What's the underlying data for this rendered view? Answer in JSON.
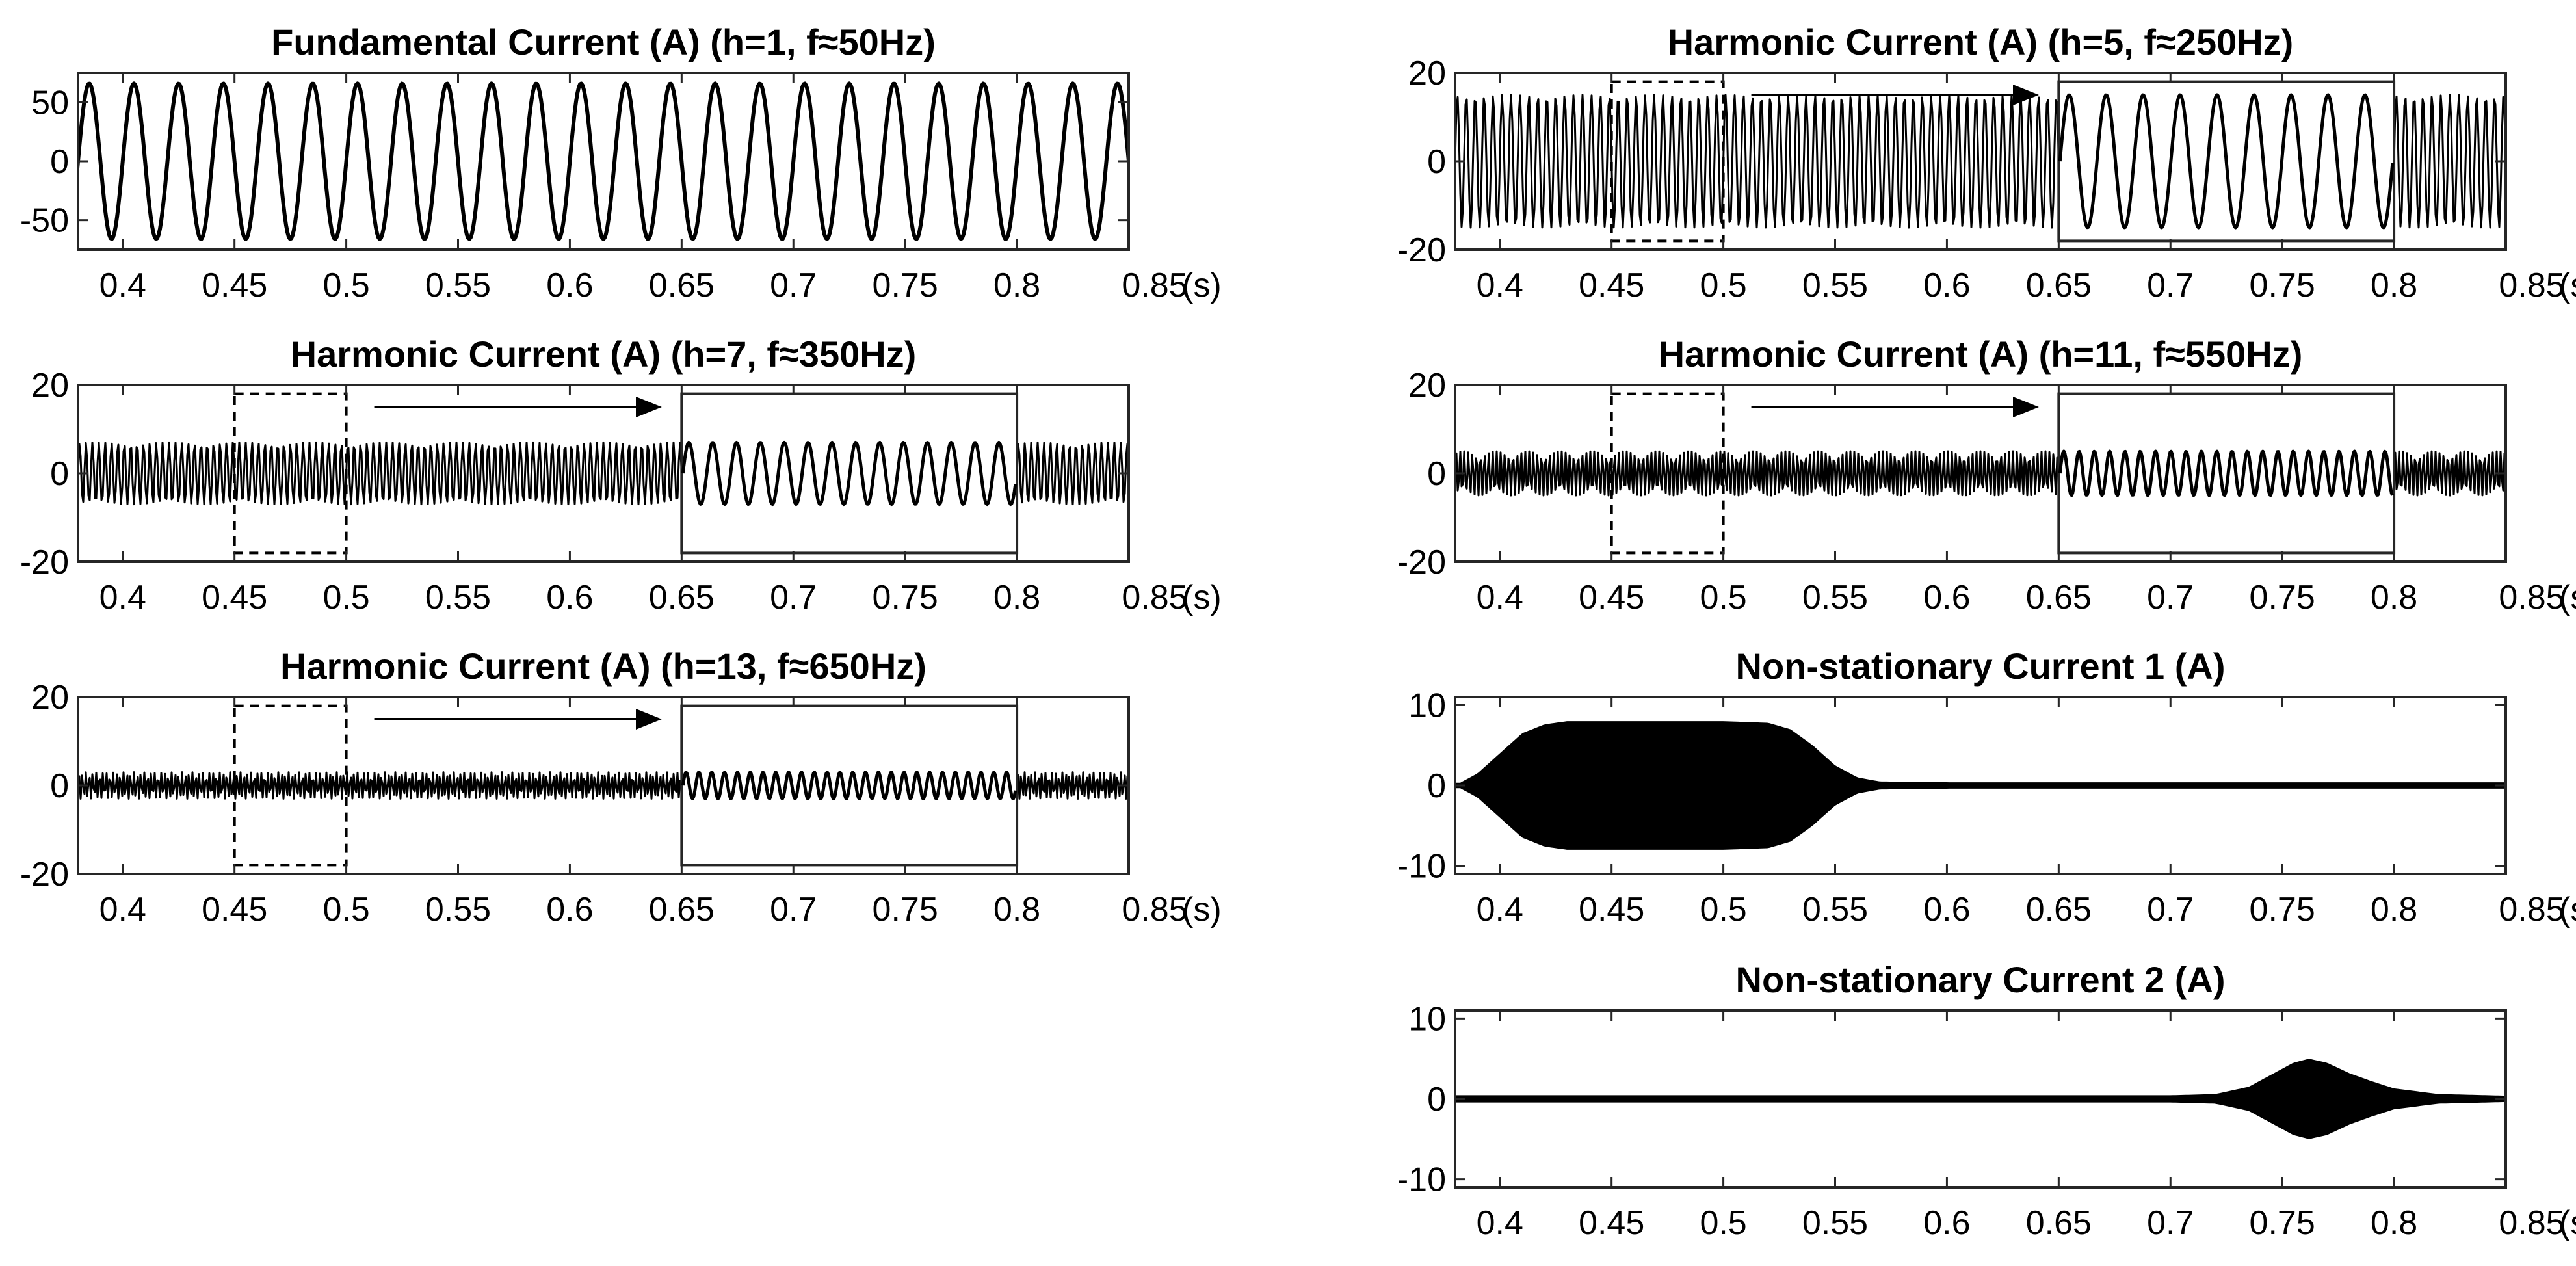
{
  "chart_data": [
    {
      "id": "p1",
      "type": "line",
      "title": "Fundamental Current (A) (h=1, f≈50Hz)",
      "series": [
        {
          "kind": "sine",
          "amplitude": 66,
          "frequency_hz": 50,
          "slow_frequency_hz": 50
        }
      ],
      "xlim": [
        0.38,
        0.85
      ],
      "ylim": [
        -75,
        75
      ],
      "xticks": [
        0.4,
        0.45,
        0.5,
        0.55,
        0.6,
        0.65,
        0.7,
        0.75,
        0.8,
        0.85
      ],
      "xtick_labels": [
        "0.4",
        "0.45",
        "0.5",
        "0.55",
        "0.6",
        "0.65",
        "0.7",
        "0.75",
        "0.8",
        "0.85"
      ],
      "x_unit": "(s)",
      "yticks": [
        50,
        0,
        -50
      ],
      "ytick_labels": [
        "50",
        "0",
        "-50"
      ],
      "zoom": null
    },
    {
      "id": "p2",
      "type": "line",
      "title": "Harmonic Current (A) (h=5, f≈250Hz)",
      "series": [
        {
          "kind": "sine",
          "amplitude": 15,
          "frequency_hz": 250,
          "slow_frequency_hz": 60
        }
      ],
      "xlim": [
        0.38,
        0.85
      ],
      "ylim": [
        -20,
        20
      ],
      "xticks": [
        0.4,
        0.45,
        0.5,
        0.55,
        0.6,
        0.65,
        0.7,
        0.75,
        0.8,
        0.85
      ],
      "xtick_labels": [
        "0.4",
        "0.45",
        "0.5",
        "0.55",
        "0.6",
        "0.65",
        "0.7",
        "0.75",
        "0.8",
        "0.85"
      ],
      "x_unit": "(s)",
      "yticks": [
        20,
        0,
        -20
      ],
      "ytick_labels": [
        "20",
        "0",
        "-20"
      ],
      "zoom": {
        "source_x": [
          0.45,
          0.5
        ],
        "target_x": [
          0.65,
          0.8
        ],
        "y": [
          -18,
          18
        ],
        "arrow_x": [
          0.5125,
          0.64
        ]
      }
    },
    {
      "id": "p3",
      "type": "line",
      "title": "Harmonic Current (A) (h=7, f≈350Hz)",
      "series": [
        {
          "kind": "sine",
          "amplitude": 7,
          "frequency_hz": 350,
          "slow_frequency_hz": 93
        }
      ],
      "xlim": [
        0.38,
        0.85
      ],
      "ylim": [
        -20,
        20
      ],
      "xticks": [
        0.4,
        0.45,
        0.5,
        0.55,
        0.6,
        0.65,
        0.7,
        0.75,
        0.8,
        0.85
      ],
      "xtick_labels": [
        "0.4",
        "0.45",
        "0.5",
        "0.55",
        "0.6",
        "0.65",
        "0.7",
        "0.75",
        "0.8",
        "0.85"
      ],
      "x_unit": "(s)",
      "yticks": [
        20,
        0,
        -20
      ],
      "ytick_labels": [
        "20",
        "0",
        "-20"
      ],
      "zoom": {
        "source_x": [
          0.45,
          0.5
        ],
        "target_x": [
          0.65,
          0.8
        ],
        "y": [
          -18,
          18
        ],
        "arrow_x": [
          0.5125,
          0.64
        ]
      }
    },
    {
      "id": "p4",
      "type": "line",
      "title": "Harmonic Current (A) (h=11, f≈550Hz)",
      "series": [
        {
          "kind": "sine",
          "amplitude": 5,
          "frequency_hz": 550,
          "slow_frequency_hz": 145
        }
      ],
      "xlim": [
        0.38,
        0.85
      ],
      "ylim": [
        -20,
        20
      ],
      "xticks": [
        0.4,
        0.45,
        0.5,
        0.55,
        0.6,
        0.65,
        0.7,
        0.75,
        0.8,
        0.85
      ],
      "xtick_labels": [
        "0.4",
        "0.45",
        "0.5",
        "0.55",
        "0.6",
        "0.65",
        "0.7",
        "0.75",
        "0.8",
        "0.85"
      ],
      "x_unit": "(s)",
      "yticks": [
        20,
        0,
        -20
      ],
      "ytick_labels": [
        "20",
        "0",
        "-20"
      ],
      "zoom": {
        "source_x": [
          0.45,
          0.5
        ],
        "target_x": [
          0.65,
          0.8
        ],
        "y": [
          -18,
          18
        ],
        "arrow_x": [
          0.5125,
          0.64
        ]
      }
    },
    {
      "id": "p5",
      "type": "line",
      "title": "Harmonic Current (A) (h=13, f≈650Hz)",
      "series": [
        {
          "kind": "sine",
          "amplitude": 3,
          "frequency_hz": 650,
          "slow_frequency_hz": 173
        }
      ],
      "xlim": [
        0.38,
        0.85
      ],
      "ylim": [
        -20,
        20
      ],
      "xticks": [
        0.4,
        0.45,
        0.5,
        0.55,
        0.6,
        0.65,
        0.7,
        0.75,
        0.8,
        0.85
      ],
      "xtick_labels": [
        "0.4",
        "0.45",
        "0.5",
        "0.55",
        "0.6",
        "0.65",
        "0.7",
        "0.75",
        "0.8",
        "0.85"
      ],
      "x_unit": "(s)",
      "yticks": [
        20,
        0,
        -20
      ],
      "ytick_labels": [
        "20",
        "0",
        "-20"
      ],
      "zoom": {
        "source_x": [
          0.45,
          0.5
        ],
        "target_x": [
          0.65,
          0.8
        ],
        "y": [
          -18,
          18
        ],
        "arrow_x": [
          0.5125,
          0.64
        ]
      }
    },
    {
      "id": "p6",
      "type": "area",
      "title": "Non-stationary Current 1 (A)",
      "envelope": {
        "t": [
          0.38,
          0.39,
          0.4,
          0.41,
          0.42,
          0.43,
          0.5,
          0.52,
          0.53,
          0.54,
          0.55,
          0.56,
          0.57,
          0.6,
          0.85
        ],
        "amp": [
          0,
          1.5,
          4,
          6.5,
          7.6,
          8,
          8,
          7.8,
          7,
          5,
          2.5,
          1,
          0.5,
          0.4,
          0.4
        ]
      },
      "xlim": [
        0.38,
        0.85
      ],
      "ylim": [
        -11,
        11
      ],
      "xticks": [
        0.4,
        0.45,
        0.5,
        0.55,
        0.6,
        0.65,
        0.7,
        0.75,
        0.8,
        0.85
      ],
      "xtick_labels": [
        "0.4",
        "0.45",
        "0.5",
        "0.55",
        "0.6",
        "0.65",
        "0.7",
        "0.75",
        "0.8",
        "0.85"
      ],
      "x_unit": "(s)",
      "yticks": [
        10,
        0,
        -10
      ],
      "ytick_labels": [
        "10",
        "0",
        "-10"
      ],
      "zoom": null
    },
    {
      "id": "p7",
      "type": "area",
      "title": "Non-stationary Current 2 (A)",
      "envelope": {
        "t": [
          0.38,
          0.7,
          0.72,
          0.735,
          0.745,
          0.755,
          0.762,
          0.77,
          0.78,
          0.79,
          0.8,
          0.82,
          0.85
        ],
        "amp": [
          0.45,
          0.45,
          0.6,
          1.5,
          3,
          4.5,
          5,
          4.5,
          3.2,
          2.2,
          1.3,
          0.6,
          0.4
        ]
      },
      "xlim": [
        0.38,
        0.85
      ],
      "ylim": [
        -11,
        11
      ],
      "xticks": [
        0.4,
        0.45,
        0.5,
        0.55,
        0.6,
        0.65,
        0.7,
        0.75,
        0.8,
        0.85
      ],
      "xtick_labels": [
        "0.4",
        "0.45",
        "0.5",
        "0.55",
        "0.6",
        "0.65",
        "0.7",
        "0.75",
        "0.8",
        "0.85"
      ],
      "x_unit": "(s)",
      "yticks": [
        10,
        0,
        -10
      ],
      "ytick_labels": [
        "10",
        "0",
        "-10"
      ],
      "zoom": null
    }
  ]
}
